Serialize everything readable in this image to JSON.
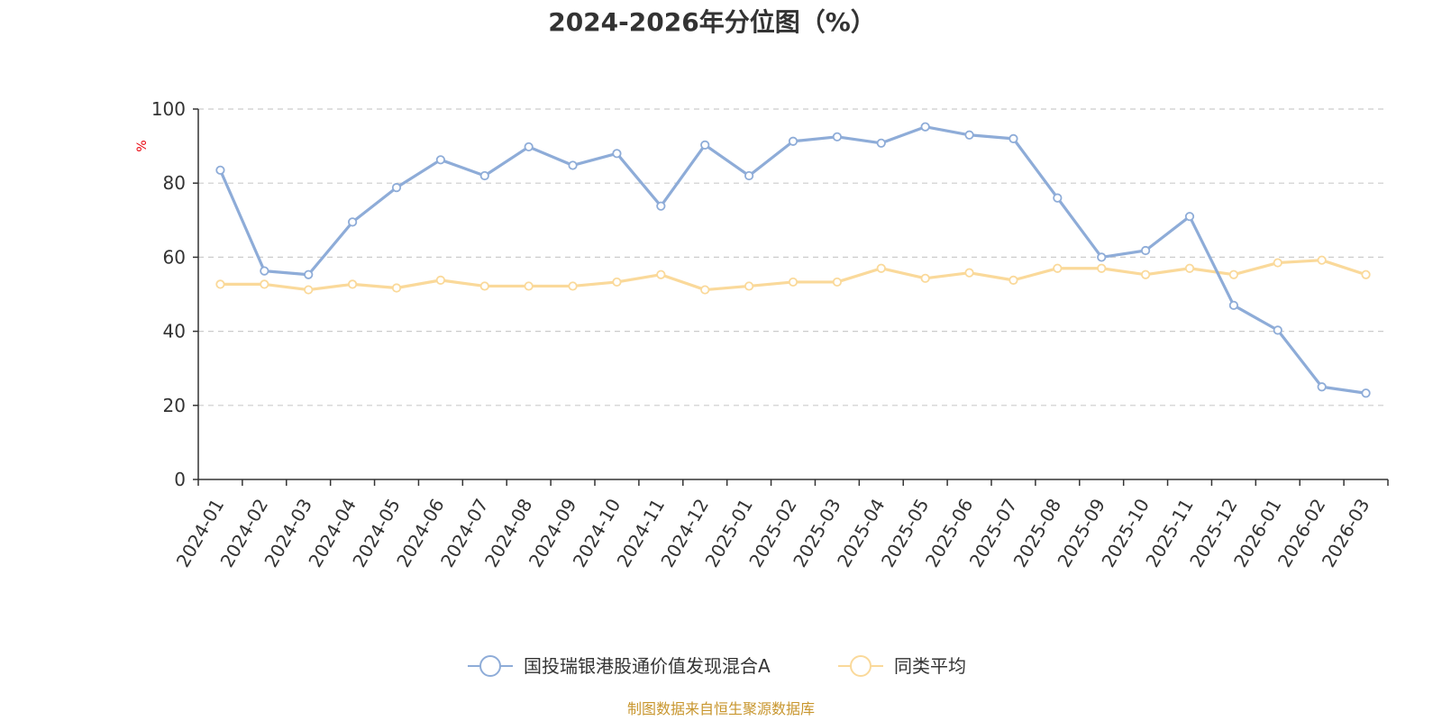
{
  "chart_data": {
    "type": "line",
    "title": "2024-2026年分位图（%）",
    "ylabel": "%",
    "ylim": [
      0,
      100
    ],
    "yticks": [
      0,
      20,
      40,
      60,
      80,
      100
    ],
    "grid": true,
    "legend_position": "bottom",
    "categories": [
      "2024-01",
      "2024-02",
      "2024-03",
      "2024-04",
      "2024-05",
      "2024-06",
      "2024-07",
      "2024-08",
      "2024-09",
      "2024-10",
      "2024-11",
      "2024-12",
      "2025-01",
      "2025-02",
      "2025-03",
      "2025-04",
      "2025-05",
      "2025-06",
      "2025-07",
      "2025-08",
      "2025-09",
      "2025-10",
      "2025-11",
      "2025-12",
      "2026-01",
      "2026-02",
      "2026-03"
    ],
    "series": [
      {
        "name": "国投瑞银港股通价值发现混合A",
        "color": "#8eacd8",
        "values": [
          83.5,
          56.3,
          55.3,
          69.5,
          78.8,
          86.3,
          82.0,
          89.8,
          84.8,
          88.0,
          73.8,
          90.3,
          82.0,
          91.3,
          92.5,
          90.8,
          95.2,
          93.0,
          92.0,
          76.0,
          60.0,
          61.8,
          71.0,
          47.0,
          40.3,
          25.0,
          23.3
        ]
      },
      {
        "name": "同类平均",
        "color": "#fad99a",
        "values": [
          52.7,
          52.7,
          51.2,
          52.7,
          51.7,
          53.8,
          52.2,
          52.2,
          52.2,
          53.3,
          55.3,
          51.2,
          52.2,
          53.3,
          53.3,
          57.0,
          54.3,
          55.8,
          53.8,
          57.0,
          57.0,
          55.3,
          57.0,
          55.3,
          58.5,
          59.2,
          55.3
        ]
      }
    ]
  },
  "unit_color": "#e8000b",
  "source_text": "制图数据来自恒生聚源数据库",
  "source_color": "#c8962e",
  "axis_color": "#333333",
  "grid_color": "#cccccc"
}
